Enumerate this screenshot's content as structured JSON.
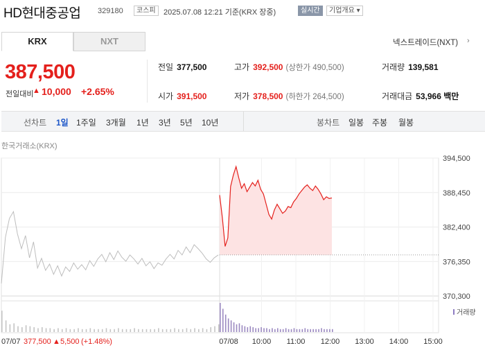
{
  "header": {
    "name": "HD현대중공업",
    "code": "329180",
    "market": "코스피",
    "timestamp": "2025.07.08 12:21 기준(KRX 장중)",
    "live_label": "실시간",
    "info_label": "기업개요 ▾"
  },
  "tabs": [
    {
      "label": "KRX",
      "active": true
    },
    {
      "label": "NXT",
      "active": false
    }
  ],
  "nxt_link": {
    "label": "넥스트레이드(NXT)",
    "arrow": "›"
  },
  "quote": {
    "price": "387,500",
    "change_label": "전일대비",
    "direction": "▲",
    "change": "10,000",
    "change_pct": "+2.65%"
  },
  "stats": {
    "prev_close": {
      "label": "전일",
      "value": "377,500"
    },
    "high": {
      "label": "고가",
      "value": "392,500",
      "limit_label": "(상한가 490,500)"
    },
    "volume": {
      "label": "거래량",
      "value": "139,581"
    },
    "open": {
      "label": "시가",
      "value": "391,500"
    },
    "low": {
      "label": "저가",
      "value": "378,500",
      "limit_label": "(하한가 264,500)"
    },
    "turnover": {
      "label": "거래대금",
      "value": "53,966 백만"
    }
  },
  "periods": {
    "line_label": "선차트",
    "line_items": [
      "1일",
      "1주일",
      "3개월",
      "1년",
      "3년",
      "5년",
      "10년"
    ],
    "active": "1일",
    "candle_label": "봉차트",
    "candle_items": [
      "일봉",
      "주봉",
      "월봉"
    ]
  },
  "source_label": "한국거래소(KRX)",
  "colors": {
    "up": "#e4201c",
    "down": "#1b55c8",
    "accent": "#1b55c8"
  },
  "chart_data": {
    "type": "line",
    "y_ticks": [
      "394,500",
      "388,450",
      "382,400",
      "376,350",
      "370,300"
    ],
    "y_tick_values": [
      394500,
      388450,
      382400,
      376350,
      370300
    ],
    "ylim": [
      370300,
      394500
    ],
    "x_ticks": [
      "07/08",
      "10:00",
      "11:00",
      "12:00",
      "13:00",
      "14:00",
      "15:00"
    ],
    "prev_close": 377500,
    "volume_label": "거래량",
    "prev_day": {
      "label": "07/07",
      "close": "377,500",
      "direction": "▲",
      "change": "5,500",
      "change_pct": "(+1.48%)",
      "values": [
        372500,
        380600,
        383900,
        385100,
        381200,
        378600,
        380900,
        377000,
        379800,
        375200,
        376900,
        374800,
        375900,
        374100,
        375600,
        373800,
        375400,
        374600,
        376100,
        375000,
        375800,
        374900,
        376500,
        375500,
        376800,
        377600,
        376300,
        377900,
        376700,
        378200,
        377100,
        376400,
        377500,
        376800,
        375900,
        376900,
        375600,
        376300,
        375100,
        376100,
        375700,
        376800,
        377600,
        376800,
        378300,
        377500,
        378900,
        377900,
        379300,
        378600,
        377800,
        376800,
        376200,
        377000,
        377500
      ]
    },
    "today": {
      "values": [
        388000,
        384000,
        379000,
        380500,
        389500,
        391500,
        393000,
        391000,
        389200,
        390000,
        388600,
        389400,
        390200,
        389600,
        390600,
        389000,
        388200,
        386400,
        384600,
        383800,
        385400,
        386400,
        385600,
        384800,
        385200,
        386000,
        385800,
        386800,
        387400,
        388200,
        388800,
        389400,
        389800,
        389200,
        388800,
        389600,
        389000,
        388200,
        387200,
        387700,
        387400,
        387500
      ]
    },
    "volume": {
      "prev_day": [
        22,
        12,
        8,
        9,
        6,
        5,
        7,
        6,
        5,
        4,
        5,
        4,
        4,
        3,
        4,
        3,
        4,
        3,
        3,
        4,
        3,
        3,
        4,
        3,
        3,
        3,
        4,
        3,
        3,
        4,
        3,
        3,
        3,
        4,
        3,
        3,
        3,
        3,
        3,
        4,
        3,
        3,
        3,
        4,
        3,
        3,
        4,
        3,
        4,
        3,
        4,
        3,
        5,
        6,
        8
      ],
      "today": [
        30,
        24,
        18,
        14,
        12,
        10,
        8,
        9,
        7,
        6,
        5,
        6,
        5,
        4,
        4,
        5,
        4,
        4,
        3,
        4,
        3,
        4,
        3,
        3,
        4,
        3,
        3,
        4,
        3,
        3,
        3,
        4,
        3,
        3,
        3,
        3,
        3,
        4,
        3,
        3,
        3,
        3
      ]
    }
  }
}
